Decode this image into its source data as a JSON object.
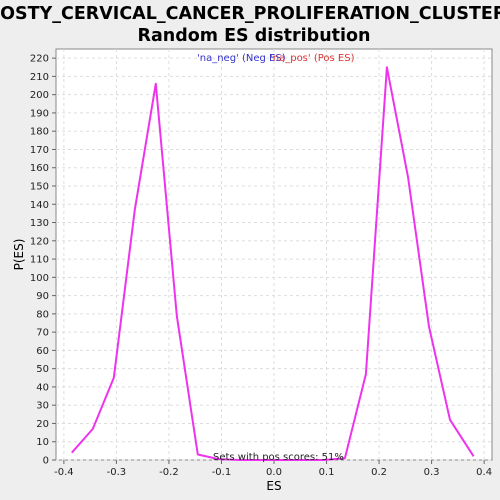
{
  "chart_data": {
    "type": "line",
    "title_line1": "ROSTY_CERVICAL_CANCER_PROLIFERATION_CLUSTER:",
    "title_line2": "Random ES distribution",
    "xlabel": "ES",
    "ylabel": "P(ES)",
    "xlim": [
      -0.415,
      0.415
    ],
    "ylim": [
      0,
      225
    ],
    "x_ticks": [
      -0.4,
      -0.3,
      -0.2,
      -0.1,
      0.0,
      0.1,
      0.2,
      0.3,
      0.4
    ],
    "x_tick_labels": [
      "-0.4",
      "-0.3",
      "-0.2",
      "-0.1",
      "0.0",
      "0.1",
      "0.2",
      "0.3",
      "0.4"
    ],
    "y_ticks": [
      0,
      10,
      20,
      30,
      40,
      50,
      60,
      70,
      80,
      90,
      100,
      110,
      120,
      130,
      140,
      150,
      160,
      170,
      180,
      190,
      200,
      210,
      220
    ],
    "grid": true,
    "legend_position": "top-center",
    "legend": [
      {
        "label": "'na_neg' (Neg ES)",
        "color": "#3333cc"
      },
      {
        "label": "'na_pos' (Pos ES)",
        "color": "#dd3333"
      }
    ],
    "series": [
      {
        "color": "#ee33ee",
        "x": [
          -0.385,
          -0.345,
          -0.305,
          -0.265,
          -0.225,
          -0.185,
          -0.145,
          -0.105,
          -0.065,
          -0.025,
          0.015,
          0.055,
          0.095,
          0.135,
          0.175,
          0.215,
          0.255,
          0.295,
          0.335,
          0.38
        ],
        "y": [
          4,
          17,
          45,
          137,
          206,
          79,
          3,
          0.5,
          0,
          0,
          0,
          0,
          0,
          1,
          47,
          215,
          155,
          73,
          22,
          2
        ]
      }
    ],
    "annotation": "Sets with pos scores: 51%"
  }
}
